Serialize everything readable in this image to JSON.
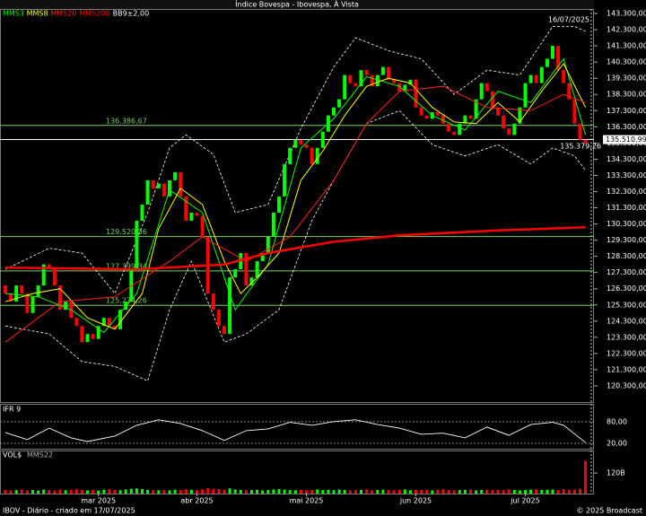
{
  "chart_data": {
    "type": "candlestick",
    "title": "Índice Bovespa - Ibovespa, À Vista",
    "date_label": "16/07/2025",
    "categories": [
      null,
      null,
      null,
      null,
      null,
      null,
      null,
      null,
      null,
      null,
      null,
      null,
      null,
      null,
      null,
      null,
      null,
      "mar 2025",
      null,
      null,
      null,
      null,
      null,
      null,
      null,
      null,
      null,
      null,
      null,
      null,
      null,
      null,
      null,
      null,
      null,
      "abr 2025",
      null,
      null,
      null,
      null,
      null,
      null,
      null,
      null,
      null,
      null,
      null,
      null,
      null,
      null,
      null,
      null,
      null,
      null,
      null,
      "mai 2025",
      null,
      null,
      null,
      null,
      null,
      null,
      null,
      null,
      null,
      null,
      null,
      null,
      null,
      null,
      null,
      null,
      null,
      null,
      null,
      "jun 2025",
      null,
      null,
      null,
      null,
      null,
      null,
      null,
      null,
      null,
      null,
      null,
      null,
      null,
      null,
      null,
      null,
      null,
      null,
      null,
      "jul 2025",
      null,
      null,
      null,
      null,
      null,
      null,
      null,
      null,
      null,
      null,
      null
    ],
    "open": [
      126500,
      126000,
      125500,
      126500,
      126000,
      124800,
      125800,
      126500,
      127800,
      127500,
      126500,
      125000,
      125500,
      124500,
      124000,
      123000,
      123500,
      123200,
      124000,
      124500,
      124000,
      123800,
      125000,
      125500,
      127500,
      130500,
      131500,
      133000,
      132500,
      132800,
      132000,
      133000,
      133500,
      132000,
      130500,
      131000,
      130800,
      129500,
      126000,
      125000,
      124000,
      123500,
      127000,
      127500,
      128500,
      126500,
      127000,
      128000,
      128500,
      129500,
      131000,
      132000,
      134000,
      135000,
      135500,
      135200,
      135000,
      134000,
      135000,
      136000,
      137000,
      137500,
      138000,
      139500,
      139000,
      138800,
      139800,
      139500,
      138800,
      139500,
      140000,
      139200,
      139000,
      138500,
      138900,
      139200,
      137500,
      137000,
      136800,
      137200,
      137000,
      136500,
      136000,
      135800,
      136500,
      137000,
      136800,
      138000,
      139000,
      138500,
      137500,
      137000,
      136200,
      135800,
      136500,
      137500,
      139000,
      139500,
      139000,
      140000,
      140500,
      141300,
      139800,
      139000,
      138000,
      136500,
      135500
    ],
    "close": [
      126000,
      125500,
      126500,
      126000,
      124800,
      125800,
      126500,
      127800,
      127500,
      126500,
      125000,
      125500,
      124500,
      124000,
      123000,
      123500,
      123200,
      124000,
      124500,
      124000,
      123800,
      125000,
      125500,
      127500,
      130500,
      131500,
      133000,
      132500,
      132800,
      132000,
      133000,
      133500,
      132000,
      130500,
      131000,
      130800,
      129500,
      126000,
      125000,
      124000,
      123500,
      127000,
      127500,
      128500,
      126500,
      127000,
      128000,
      128500,
      129500,
      131000,
      132000,
      134000,
      135000,
      135500,
      135200,
      135000,
      134000,
      135000,
      136000,
      137000,
      137500,
      138000,
      139500,
      139000,
      138800,
      139800,
      139500,
      138800,
      139500,
      140000,
      139200,
      139000,
      138500,
      138900,
      139200,
      137500,
      137000,
      136800,
      137200,
      137000,
      136500,
      136000,
      135800,
      136500,
      137000,
      136800,
      138000,
      139000,
      138500,
      137500,
      137000,
      136200,
      135800,
      136500,
      137500,
      139000,
      139500,
      139000,
      140000,
      140500,
      141300,
      139800,
      139000,
      138000,
      136500,
      135500,
      135300
    ],
    "colors": {
      "up": "#00ff00",
      "down": "#ff0000"
    },
    "ylim": [
      119300,
      143580
    ],
    "yticks": [
      {
        "value": 143300,
        "label": "143.300,00"
      },
      {
        "value": 142300,
        "label": "142.300,00"
      },
      {
        "value": 141300,
        "label": "141.300,00"
      },
      {
        "value": 140300,
        "label": "140.300,00"
      },
      {
        "value": 139300,
        "label": "139.300,00"
      },
      {
        "value": 138300,
        "label": "138.300,00"
      },
      {
        "value": 137300,
        "label": "137.300,00"
      },
      {
        "value": 136300,
        "label": "136.300,00"
      },
      {
        "value": 135300,
        "label": "135.300,00"
      },
      {
        "value": 134300,
        "label": "134.300,00"
      },
      {
        "value": 133300,
        "label": "133.300,00"
      },
      {
        "value": 132300,
        "label": "132.300,00"
      },
      {
        "value": 131300,
        "label": "131.300,00"
      },
      {
        "value": 130300,
        "label": "130.300,00"
      },
      {
        "value": 129300,
        "label": "129.300,00"
      },
      {
        "value": 128300,
        "label": "128.300,00"
      },
      {
        "value": 127300,
        "label": "127.300,00"
      },
      {
        "value": 126300,
        "label": "126.300,00"
      },
      {
        "value": 125300,
        "label": "125.300,00"
      },
      {
        "value": 124300,
        "label": "124.300,00"
      },
      {
        "value": 123300,
        "label": "123.300,00"
      },
      {
        "value": 122300,
        "label": "122.300,00"
      },
      {
        "value": 121300,
        "label": "121.300,00"
      },
      {
        "value": 120300,
        "label": "120.300,00"
      }
    ],
    "levels": [
      {
        "value": 136386.67,
        "label": "136.386,67"
      },
      {
        "value": 129520.36,
        "label": "129.520,36"
      },
      {
        "value": 127399.34,
        "label": "127.399,34"
      },
      {
        "value": 125274.26,
        "label": "125.274,26"
      }
    ],
    "level_color": "#7ccf6a",
    "price_line": {
      "value": 135510.99,
      "label": "135.510,99"
    },
    "last_label": {
      "value": 135379.26,
      "label": "135.379,26"
    },
    "series": [
      {
        "name": "MMS3",
        "color": "#00ff00",
        "x": [
          0,
          6,
          12,
          18,
          24,
          30,
          36,
          42,
          48,
          54,
          60,
          66,
          72,
          78,
          84,
          90,
          96,
          102,
          106
        ],
        "values": [
          126000,
          125800,
          125000,
          123600,
          126000,
          132400,
          131000,
          125000,
          127800,
          135000,
          136800,
          139400,
          138800,
          137000,
          136100,
          138500,
          137800,
          140500,
          135800
        ]
      },
      {
        "name": "MMS8",
        "color": "#ffff00",
        "x": [
          0,
          5,
          10,
          15,
          20,
          25,
          28,
          32,
          36,
          40,
          43,
          46,
          50,
          54,
          58,
          62,
          66,
          70,
          74,
          78,
          82,
          86,
          90,
          94,
          98,
          102,
          106
        ],
        "values": [
          125500,
          126000,
          126300,
          124500,
          123800,
          126000,
          130000,
          132500,
          131500,
          128000,
          126000,
          127000,
          128500,
          133000,
          134800,
          137000,
          138800,
          139300,
          139000,
          137500,
          136600,
          136500,
          137800,
          136600,
          138500,
          140200,
          137500
        ]
      },
      {
        "name": "MMS20",
        "color": "#ff2020",
        "x": [
          0,
          10,
          20,
          30,
          36,
          44,
          52,
          60,
          66,
          72,
          80,
          88,
          96,
          102,
          106
        ],
        "values": [
          123000,
          125500,
          125800,
          128000,
          129500,
          128000,
          129500,
          133000,
          136500,
          138500,
          138800,
          137500,
          137300,
          138300,
          137800
        ]
      },
      {
        "name": "MMS200",
        "color": "#ff0000",
        "x": [
          0,
          24,
          40,
          48,
          60,
          72,
          90,
          106
        ],
        "values": [
          127600,
          127500,
          127800,
          128500,
          129200,
          129600,
          129900,
          130100
        ]
      }
    ],
    "bands": {
      "name": "BB9±2,00",
      "color": "#ffffff",
      "upper": {
        "x": [
          0,
          8,
          14,
          20,
          26,
          30,
          33,
          38,
          42,
          48,
          54,
          60,
          64,
          70,
          76,
          82,
          88,
          94,
          100,
          104,
          106
        ],
        "values": [
          127500,
          128800,
          128500,
          126000,
          131000,
          135000,
          135800,
          134600,
          131000,
          131500,
          136200,
          140000,
          141800,
          141000,
          140500,
          138300,
          139800,
          139500,
          142500,
          142500,
          142200
        ]
      },
      "lower": {
        "x": [
          0,
          8,
          14,
          20,
          26,
          30,
          34,
          40,
          44,
          50,
          56,
          60,
          66,
          72,
          78,
          84,
          90,
          96,
          100,
          104,
          106
        ],
        "values": [
          124000,
          123500,
          121800,
          121500,
          120600,
          125000,
          128000,
          123000,
          123500,
          125000,
          130500,
          133000,
          136500,
          137300,
          135200,
          134500,
          135200,
          134000,
          135000,
          134500,
          133600
        ]
      }
    },
    "rsi": {
      "title": "IFR 9",
      "color": "#ffffff",
      "ylim": [
        5,
        102
      ],
      "yticks": [
        {
          "value": 80,
          "label": "80,00"
        },
        {
          "value": 20,
          "label": "20,00"
        }
      ],
      "x": [
        0,
        4,
        8,
        12,
        15,
        20,
        24,
        28,
        32,
        36,
        40,
        44,
        48,
        52,
        56,
        60,
        64,
        68,
        72,
        76,
        80,
        84,
        88,
        92,
        96,
        100,
        102,
        106
      ],
      "values": [
        50,
        30,
        62,
        35,
        25,
        40,
        70,
        85,
        75,
        55,
        28,
        55,
        60,
        78,
        70,
        80,
        85,
        72,
        62,
        45,
        48,
        35,
        65,
        42,
        72,
        78,
        70,
        22
      ]
    },
    "volume": {
      "title": "VOL$",
      "avg_name": "MMS22",
      "ylim": [
        0,
        210
      ],
      "yticks": [
        {
          "value": 120,
          "label": "120B"
        }
      ],
      "values": [
        22,
        18,
        20,
        25,
        19,
        21,
        17,
        23,
        20,
        18,
        24,
        19,
        21,
        26,
        22,
        18,
        20,
        17,
        23,
        25,
        21,
        19,
        24,
        28,
        30,
        26,
        22,
        20,
        19,
        21,
        18,
        23,
        20,
        25,
        22,
        19,
        24,
        32,
        28,
        26,
        22,
        30,
        24,
        21,
        19,
        20,
        22,
        18,
        21,
        24,
        26,
        23,
        20,
        19,
        22,
        18,
        21,
        24,
        20,
        22,
        19,
        23,
        21,
        18,
        20,
        22,
        25,
        19,
        21,
        23,
        20,
        18,
        22,
        24,
        19,
        21,
        20,
        23,
        18,
        22,
        25,
        21,
        19,
        20,
        22,
        24,
        18,
        21,
        23,
        20,
        22,
        19,
        24,
        21,
        18,
        20,
        23,
        25,
        21,
        22,
        24,
        20,
        26,
        22,
        24,
        28,
        190
      ]
    },
    "footer_left": "IBOV - Diário - criado em 17/07/2025",
    "footer_right": "© 2025 Broadcast"
  }
}
